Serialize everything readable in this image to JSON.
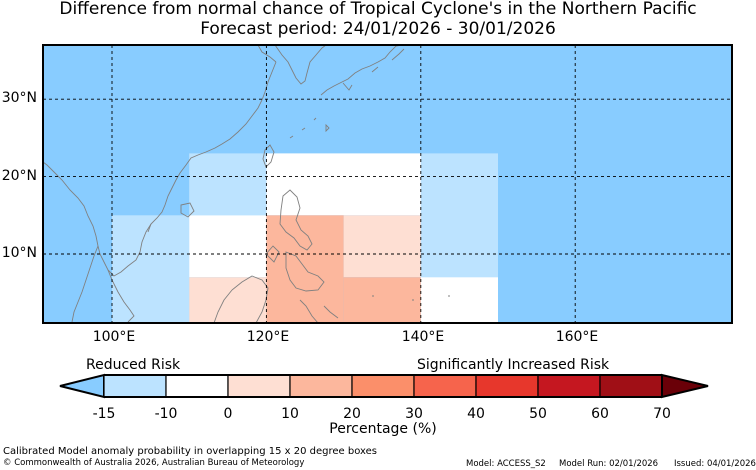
{
  "header": {
    "title_line1": "Difference from normal chance of Tropical Cyclone's in the Northern Pacific",
    "title_line2": "Forecast period: 24/01/2026 - 30/01/2026"
  },
  "map": {
    "lat_labels": [
      "30°N",
      "20°N",
      "10°N"
    ],
    "lon_labels": [
      "100°E",
      "120°E",
      "140°E",
      "160°E"
    ],
    "background_color": "#88ccff",
    "land_outline_color": "#808080"
  },
  "anomaly_boxes": [
    {
      "lon_range": [
        100,
        110
      ],
      "lat_range": [
        0,
        15
      ],
      "category": "-15 to -10",
      "color": "#bce3ff"
    },
    {
      "lon_range": [
        110,
        120
      ],
      "lat_range": [
        15,
        23
      ],
      "category": "-15 to -10",
      "color": "#bce3ff"
    },
    {
      "lon_range": [
        140,
        150
      ],
      "lat_range": [
        7,
        23
      ],
      "category": "-15 to -10",
      "color": "#bce3ff"
    },
    {
      "lon_range": [
        120,
        140
      ],
      "lat_range": [
        15,
        23
      ],
      "category": "-10 to 0",
      "color": "#ffffff"
    },
    {
      "lon_range": [
        110,
        120
      ],
      "lat_range": [
        7,
        15
      ],
      "category": "-10 to 0",
      "color": "#ffffff"
    },
    {
      "lon_range": [
        140,
        150
      ],
      "lat_range": [
        0,
        7
      ],
      "category": "-10 to 0",
      "color": "#ffffff"
    },
    {
      "lon_range": [
        110,
        120
      ],
      "lat_range": [
        0,
        7
      ],
      "category": "0 to 10",
      "color": "#fedfd3"
    },
    {
      "lon_range": [
        130,
        140
      ],
      "lat_range": [
        7,
        15
      ],
      "category": "0 to 10",
      "color": "#fedfd3"
    },
    {
      "lon_range": [
        120,
        130
      ],
      "lat_range": [
        0,
        15
      ],
      "category": "10 to 20",
      "color": "#fcb79d"
    },
    {
      "lon_range": [
        130,
        140
      ],
      "lat_range": [
        0,
        7
      ],
      "category": "10 to 20",
      "color": "#fcb79d"
    }
  ],
  "legend": {
    "left_label": "Reduced Risk",
    "right_label": "Significantly Increased Risk",
    "tick_labels": [
      "-15",
      "-10",
      "0",
      "10",
      "20",
      "30",
      "40",
      "50",
      "60",
      "70"
    ],
    "axis_label": "Percentage (%)",
    "colors": [
      "#88ccff",
      "#bce3ff",
      "#ffffff",
      "#fedfd3",
      "#fcb79d",
      "#fb8f6a",
      "#f6644c",
      "#e7372c",
      "#c51720",
      "#a00f16",
      "#6a0008"
    ]
  },
  "footer": {
    "note": "Calibrated Model anomaly probability in overlapping 15 x 20 degree boxes",
    "copyright": "© Commonwealth of Australia 2026, Australian Bureau of Meteorology",
    "model": "Model: ACCESS_S2",
    "model_run": "Model Run: 02/01/2026",
    "issued": "Issued: 04/01/2026"
  }
}
